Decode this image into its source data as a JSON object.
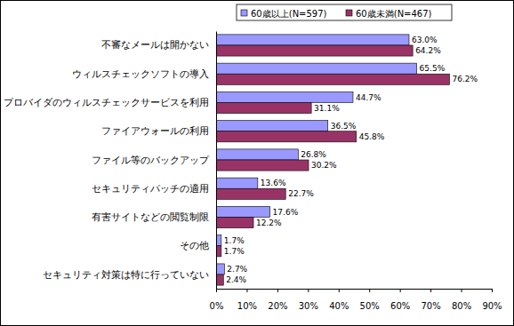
{
  "chart_data": {
    "type": "bar",
    "orientation": "horizontal",
    "categories": [
      "不審なメールは開かない",
      "ウィルスチェックソフトの導入",
      "プロバイダのウィルスチェックサービスを利用",
      "ファイアウォールの利用",
      "ファイル等のバックアップ",
      "セキュリティパッチの適用",
      "有害サイトなどの閲覧制限",
      "その他",
      "セキュリティ対策は特に行っていない"
    ],
    "series": [
      {
        "name": "60歳以上(N=597)",
        "color": "#9999ff",
        "values": [
          63.0,
          65.5,
          44.7,
          36.5,
          26.8,
          13.6,
          17.6,
          1.7,
          2.7
        ],
        "value_labels": [
          "63.0%",
          "65.5%",
          "44.7%",
          "36.5%",
          "26.8%",
          "13.6%",
          "17.6%",
          "1.7%",
          "2.7%"
        ]
      },
      {
        "name": "60歳未満(N=467)",
        "color": "#993366",
        "values": [
          64.2,
          76.2,
          31.1,
          45.8,
          30.2,
          22.7,
          12.2,
          1.7,
          2.4
        ],
        "value_labels": [
          "64.2%",
          "76.2%",
          "31.1%",
          "45.8%",
          "30.2%",
          "22.7%",
          "12.2%",
          "1.7%",
          "2.4%"
        ]
      }
    ],
    "xlim": [
      0,
      90
    ],
    "xticks": [
      {
        "value": 0,
        "label": "0%"
      },
      {
        "value": 10,
        "label": "10%"
      },
      {
        "value": 20,
        "label": "20%"
      },
      {
        "value": 30,
        "label": "30%"
      },
      {
        "value": 40,
        "label": "40%"
      },
      {
        "value": 50,
        "label": "50%"
      },
      {
        "value": 60,
        "label": "60%"
      },
      {
        "value": 70,
        "label": "70%"
      },
      {
        "value": 80,
        "label": "80%"
      },
      {
        "value": 90,
        "label": "90%"
      }
    ],
    "grid": false,
    "data_labels": true,
    "legend": "top-right"
  }
}
